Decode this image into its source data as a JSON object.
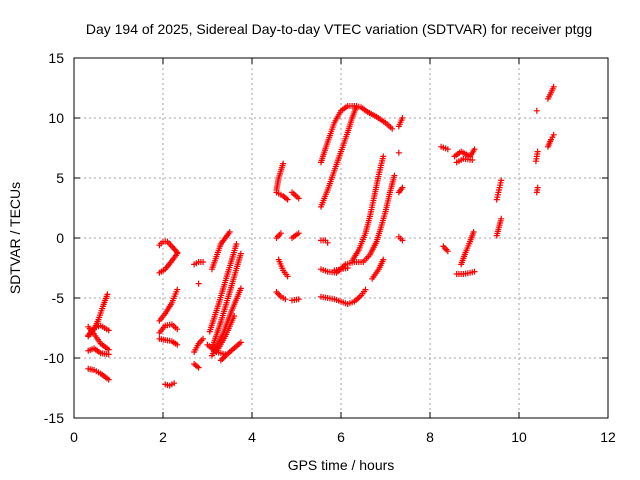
{
  "chart_data": {
    "type": "scatter",
    "title": "Day 194 of 2025, Sidereal Day-to-day VTEC variation (SDTVAR) for receiver ptgg",
    "xlabel": "GPS time / hours",
    "ylabel": "SDTVAR / TECUs",
    "xlim": [
      0,
      12
    ],
    "ylim": [
      -15,
      15
    ],
    "xticks": [
      "0",
      "2",
      "4",
      "6",
      "8",
      "10",
      "12"
    ],
    "yticks": [
      "-15",
      "-10",
      "-5",
      "0",
      "5",
      "10",
      "15"
    ],
    "grid": true,
    "marker": "plus",
    "color": "#ff0000",
    "tracks": [
      [
        [
          0.32,
          -8.2
        ],
        [
          0.45,
          -7.6
        ],
        [
          0.55,
          -6.8
        ],
        [
          0.65,
          -5.7
        ],
        [
          0.75,
          -4.7
        ]
      ],
      [
        [
          0.32,
          -7.4
        ],
        [
          0.45,
          -8.0
        ],
        [
          0.6,
          -8.8
        ],
        [
          0.78,
          -9.3
        ]
      ],
      [
        [
          0.32,
          -8.1
        ],
        [
          0.45,
          -7.5
        ],
        [
          0.6,
          -7.3
        ],
        [
          0.78,
          -7.7
        ]
      ],
      [
        [
          0.32,
          -9.4
        ],
        [
          0.45,
          -9.2
        ],
        [
          0.6,
          -9.6
        ],
        [
          0.78,
          -9.7
        ]
      ],
      [
        [
          0.32,
          -10.9
        ],
        [
          0.45,
          -11.0
        ],
        [
          0.6,
          -11.3
        ],
        [
          0.78,
          -11.8
        ]
      ],
      [
        [
          1.92,
          -0.6
        ],
        [
          2.0,
          -0.3
        ],
        [
          2.1,
          -0.3
        ],
        [
          2.2,
          -0.7
        ],
        [
          2.32,
          -1.2
        ]
      ],
      [
        [
          1.92,
          -2.9
        ],
        [
          2.05,
          -2.6
        ],
        [
          2.2,
          -1.9
        ],
        [
          2.32,
          -1.3
        ]
      ],
      [
        [
          1.92,
          -6.9
        ],
        [
          2.05,
          -6.3
        ],
        [
          2.2,
          -5.4
        ],
        [
          2.32,
          -4.3
        ]
      ],
      [
        [
          1.92,
          -7.9
        ],
        [
          2.05,
          -7.3
        ],
        [
          2.2,
          -7.2
        ],
        [
          2.32,
          -7.6
        ]
      ],
      [
        [
          1.92,
          -8.4
        ],
        [
          2.05,
          -8.5
        ],
        [
          2.2,
          -8.6
        ],
        [
          2.32,
          -8.9
        ]
      ],
      [
        [
          2.05,
          -12.2
        ],
        [
          2.15,
          -12.3
        ],
        [
          2.25,
          -12.1
        ]
      ],
      [
        [
          2.7,
          -2.2
        ],
        [
          2.8,
          -2.0
        ],
        [
          2.9,
          -2.0
        ]
      ],
      [
        [
          2.7,
          -9.5
        ],
        [
          2.8,
          -8.8
        ],
        [
          2.9,
          -8.4
        ]
      ],
      [
        [
          2.7,
          -10.5
        ],
        [
          2.8,
          -10.8
        ]
      ],
      [
        [
          2.8,
          -3.8
        ]
      ],
      [
        [
          3.1,
          -2.6
        ],
        [
          3.3,
          -0.5
        ],
        [
          3.5,
          0.5
        ]
      ],
      [
        [
          3.05,
          -7.8
        ],
        [
          3.25,
          -5.5
        ],
        [
          3.45,
          -3.0
        ],
        [
          3.65,
          -0.5
        ]
      ],
      [
        [
          3.1,
          -9.2
        ],
        [
          3.3,
          -7.0
        ],
        [
          3.5,
          -4.5
        ],
        [
          3.75,
          -1.3
        ]
      ],
      [
        [
          3.1,
          -9.8
        ],
        [
          3.35,
          -8.0
        ],
        [
          3.55,
          -6.0
        ],
        [
          3.75,
          -4.2
        ]
      ],
      [
        [
          3.2,
          -9.5
        ],
        [
          3.4,
          -8.2
        ],
        [
          3.6,
          -6.5
        ]
      ],
      [
        [
          3.3,
          -10.2
        ],
        [
          3.5,
          -9.5
        ],
        [
          3.75,
          -8.7
        ]
      ],
      [
        [
          3.0,
          -8.9
        ],
        [
          3.2,
          -9.5
        ],
        [
          3.4,
          -9.7
        ]
      ],
      [
        [
          4.55,
          4.0
        ],
        [
          4.6,
          5.0
        ],
        [
          4.7,
          6.2
        ]
      ],
      [
        [
          4.55,
          0.0
        ],
        [
          4.65,
          0.4
        ]
      ],
      [
        [
          4.55,
          3.8
        ],
        [
          4.7,
          3.5
        ],
        [
          4.8,
          3.2
        ]
      ],
      [
        [
          4.6,
          -1.8
        ],
        [
          4.7,
          -2.7
        ],
        [
          4.8,
          -3.2
        ]
      ],
      [
        [
          4.55,
          -4.5
        ],
        [
          4.65,
          -4.9
        ],
        [
          4.75,
          -5.1
        ]
      ],
      [
        [
          4.9,
          3.8
        ],
        [
          5.05,
          3.3
        ]
      ],
      [
        [
          4.9,
          0.0
        ],
        [
          5.05,
          0.4
        ]
      ],
      [
        [
          4.9,
          -5.2
        ],
        [
          5.05,
          -5.1
        ]
      ],
      [
        [
          5.55,
          6.3
        ],
        [
          5.7,
          8.0
        ],
        [
          5.85,
          9.6
        ],
        [
          6.0,
          10.6
        ],
        [
          6.15,
          11.0
        ],
        [
          6.3,
          11.0
        ],
        [
          6.45,
          10.9
        ],
        [
          6.6,
          10.5
        ],
        [
          6.8,
          10.1
        ],
        [
          7.0,
          9.6
        ],
        [
          7.15,
          9.1
        ]
      ],
      [
        [
          5.55,
          2.6
        ],
        [
          5.7,
          4.0
        ],
        [
          5.85,
          5.6
        ],
        [
          6.0,
          7.2
        ],
        [
          6.15,
          8.8
        ],
        [
          6.25,
          10.0
        ],
        [
          6.35,
          11.0
        ]
      ],
      [
        [
          5.55,
          -0.2
        ],
        [
          5.65,
          -0.2
        ],
        [
          5.7,
          -0.4
        ]
      ],
      [
        [
          5.55,
          -2.6
        ],
        [
          5.7,
          -2.8
        ],
        [
          5.9,
          -2.9
        ],
        [
          6.1,
          -2.2
        ],
        [
          6.3,
          -2.0
        ],
        [
          6.5,
          -2.0
        ],
        [
          6.65,
          -1.4
        ],
        [
          6.8,
          -0.3
        ],
        [
          6.9,
          0.9
        ],
        [
          7.0,
          2.2
        ],
        [
          7.1,
          3.8
        ],
        [
          7.2,
          5.2
        ]
      ],
      [
        [
          5.55,
          -4.9
        ],
        [
          5.7,
          -5.0
        ],
        [
          5.85,
          -5.1
        ],
        [
          6.0,
          -5.3
        ],
        [
          6.15,
          -5.5
        ],
        [
          6.3,
          -5.3
        ],
        [
          6.45,
          -4.8
        ],
        [
          6.55,
          -4.3
        ]
      ],
      [
        [
          5.85,
          -2.7
        ],
        [
          6.0,
          -2.6
        ],
        [
          6.15,
          -2.5
        ]
      ],
      [
        [
          6.25,
          -1.9
        ],
        [
          6.4,
          -1.0
        ],
        [
          6.55,
          0.4
        ],
        [
          6.65,
          1.8
        ],
        [
          6.75,
          3.5
        ],
        [
          6.85,
          5.3
        ],
        [
          6.95,
          6.8
        ]
      ],
      [
        [
          6.7,
          -3.4
        ],
        [
          6.85,
          -2.6
        ],
        [
          6.95,
          -1.8
        ]
      ],
      [
        [
          7.3,
          9.3
        ],
        [
          7.38,
          10.0
        ]
      ],
      [
        [
          7.3,
          7.1
        ]
      ],
      [
        [
          7.3,
          3.8
        ],
        [
          7.38,
          4.2
        ]
      ],
      [
        [
          7.3,
          0.1
        ],
        [
          7.38,
          -0.2
        ]
      ],
      [
        [
          8.25,
          7.6
        ],
        [
          8.4,
          7.4
        ]
      ],
      [
        [
          8.3,
          -0.7
        ],
        [
          8.4,
          -1.1
        ]
      ],
      [
        [
          8.55,
          6.8
        ],
        [
          8.7,
          7.2
        ],
        [
          8.9,
          6.8
        ],
        [
          9.0,
          7.4
        ]
      ],
      [
        [
          8.6,
          6.3
        ],
        [
          8.75,
          6.6
        ],
        [
          8.95,
          6.5
        ]
      ],
      [
        [
          8.7,
          -2.2
        ],
        [
          8.8,
          -1.2
        ],
        [
          8.9,
          -0.3
        ],
        [
          8.98,
          0.5
        ]
      ],
      [
        [
          8.6,
          -3.0
        ],
        [
          8.75,
          -3.0
        ],
        [
          8.9,
          -2.9
        ],
        [
          9.0,
          -2.8
        ]
      ],
      [
        [
          9.5,
          3.2
        ],
        [
          9.55,
          4.0
        ],
        [
          9.6,
          4.8
        ]
      ],
      [
        [
          9.5,
          0.2
        ],
        [
          9.55,
          0.9
        ],
        [
          9.6,
          1.6
        ]
      ],
      [
        [
          10.38,
          6.4
        ],
        [
          10.42,
          7.2
        ]
      ],
      [
        [
          10.4,
          10.6
        ]
      ],
      [
        [
          10.4,
          3.8
        ],
        [
          10.42,
          4.2
        ]
      ],
      [
        [
          10.65,
          7.6
        ],
        [
          10.72,
          8.2
        ],
        [
          10.78,
          8.6
        ]
      ],
      [
        [
          10.65,
          11.6
        ],
        [
          10.72,
          12.1
        ],
        [
          10.78,
          12.6
        ]
      ]
    ]
  }
}
